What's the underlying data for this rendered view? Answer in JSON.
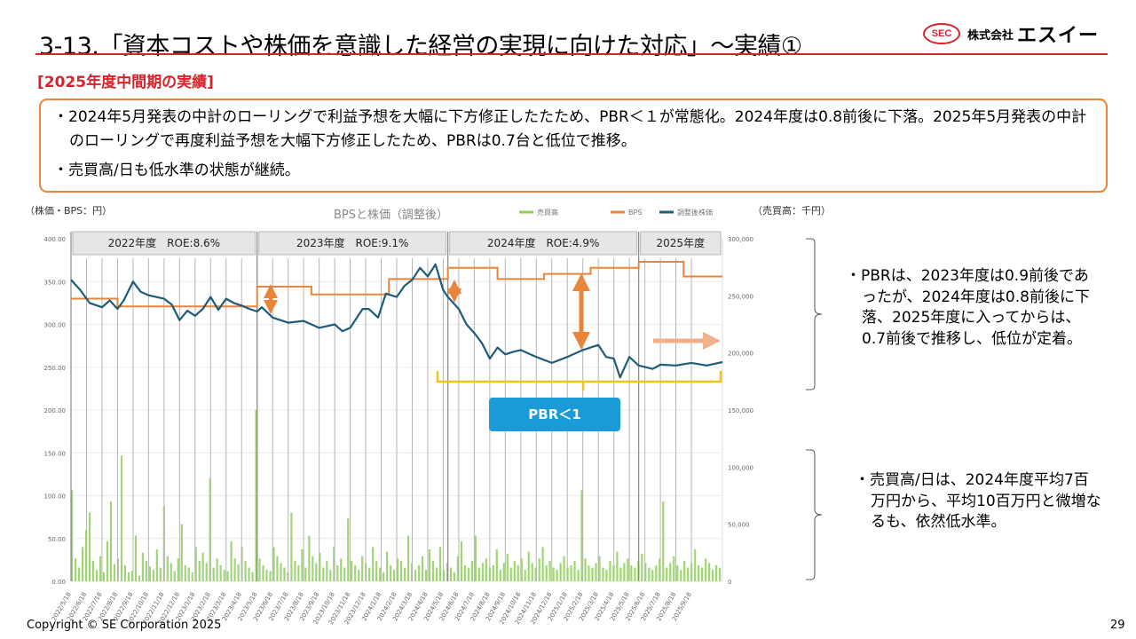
{
  "header": {
    "title": "3-13.「資本コストや株価を意識した経営の実現に向けた対応」～実績①",
    "logo_mark": "SEC",
    "logo_kk": "株式会社",
    "logo_name": "エスイー"
  },
  "section_label": "[2025年度中間期の実績]",
  "summary": {
    "bullet1": "・2024年5月発表の中計のローリングで利益予想を大幅に下方修正したたため、PBR＜１が常態化。2024年度は0.8前後に下落。2025年5月発表の中計のローリングで再度利益予想を大幅下方修正したため、PBRは0.7台と低位で推移。",
    "bullet2": "・売買高/日も低水準の状態が継続。"
  },
  "notes": {
    "pbr": "・PBRは、2023年度は0.9前後であったが、2024年度は0.8前後に下落、2025年度に入ってからは、0.7前後で推移し、低位が定着。",
    "volume": "・売買高/日は、2024年度平均7百万円から、平均10百万円と微増なるも、依然低水準。"
  },
  "footer": {
    "copyright": "Copyright © SE Corporation 2025",
    "page": "29"
  },
  "colors": {
    "accent_red": "#d9222a",
    "box_border": "#e8853b",
    "bps": "#e8853b",
    "price": "#1f5c7a",
    "volume": "#8fce5a",
    "badge": "#1a9ad6",
    "bracket": "#f0c419"
  },
  "chart_data": {
    "type": "line",
    "title": "BPSと株価（調整後）",
    "left_axis_unit": "（株価・BPS：円）",
    "right_axis_unit": "（売買高：千円）",
    "ylim_left": [
      0,
      400
    ],
    "ylim_right": [
      0,
      300000
    ],
    "yticks_left": [
      "0.00",
      "50.00",
      "100.00",
      "150.00",
      "200.00",
      "250.00",
      "300.00",
      "350.00",
      "400.00"
    ],
    "yticks_right": [
      "0",
      "50,000",
      "100,000",
      "150,000",
      "200,000",
      "250,000",
      "300,000"
    ],
    "xlim": [
      0,
      42
    ],
    "x_labels": [
      "2022/5/18",
      "2022/6/18",
      "2022/7/18",
      "2022/8/18",
      "2022/9/18",
      "2022/10/18",
      "2022/11/18",
      "2022/12/18",
      "2023/1/18",
      "2023/2/18",
      "2023/3/18",
      "2023/4/18",
      "2023/5/18",
      "2023/6/18",
      "2023/7/18",
      "2023/8/18",
      "2023/9/18",
      "2023/10/18",
      "2023/11/18",
      "2023/12/18",
      "2024/1/18",
      "2024/2/18",
      "2024/3/18",
      "2024/4/18",
      "2024/5/18",
      "2024/6/18",
      "2024/7/18",
      "2024/8/18",
      "2024/9/18",
      "2024/10/18",
      "2024/11/18",
      "2024/12/18",
      "2025/1/18",
      "2025/2/18",
      "2025/3/18",
      "2025/4/18",
      "2025/5/18",
      "2025/6/18",
      "2025/7/18",
      "2025/8/18",
      "2025/9/18"
    ],
    "legend": [
      "売買高",
      "BPS",
      "調整後株価"
    ],
    "legend_position": "top",
    "fiscal_years": [
      {
        "label": "2022年度　ROE:8.6%",
        "from": 0,
        "to": 12
      },
      {
        "label": "2023年度　ROE:9.1%",
        "from": 12,
        "to": 24.3
      },
      {
        "label": "2024年度　ROE:4.9%",
        "from": 24.3,
        "to": 36.6
      },
      {
        "label": "2025年度",
        "from": 36.6,
        "to": 42
      }
    ],
    "bps": [
      {
        "x0": 0,
        "x1": 3,
        "y": 330
      },
      {
        "x0": 3,
        "x1": 12,
        "y": 321
      },
      {
        "x0": 12,
        "x1": 15.5,
        "y": 344
      },
      {
        "x0": 15.5,
        "x1": 20.5,
        "y": 335
      },
      {
        "x0": 20.5,
        "x1": 24.3,
        "y": 353
      },
      {
        "x0": 24.3,
        "x1": 27.5,
        "y": 366
      },
      {
        "x0": 27.5,
        "x1": 30.5,
        "y": 353
      },
      {
        "x0": 30.5,
        "x1": 33.5,
        "y": 359
      },
      {
        "x0": 33.5,
        "x1": 36.6,
        "y": 366
      },
      {
        "x0": 36.6,
        "x1": 39.5,
        "y": 373
      },
      {
        "x0": 39.5,
        "x1": 42,
        "y": 356
      }
    ],
    "price": [
      [
        0,
        352
      ],
      [
        0.6,
        340
      ],
      [
        1.2,
        325
      ],
      [
        2,
        320
      ],
      [
        2.5,
        328
      ],
      [
        3,
        318
      ],
      [
        3.4,
        328
      ],
      [
        4,
        350
      ],
      [
        4.5,
        338
      ],
      [
        5,
        334
      ],
      [
        6,
        330
      ],
      [
        6.5,
        323
      ],
      [
        7,
        305
      ],
      [
        7.5,
        316
      ],
      [
        8,
        310
      ],
      [
        8.5,
        318
      ],
      [
        9,
        332
      ],
      [
        9.5,
        317
      ],
      [
        10,
        330
      ],
      [
        10.5,
        325
      ],
      [
        11,
        322
      ],
      [
        11.5,
        318
      ],
      [
        12,
        315
      ],
      [
        12.3,
        320
      ],
      [
        13,
        308
      ],
      [
        14,
        302
      ],
      [
        15,
        304
      ],
      [
        16,
        296
      ],
      [
        17,
        300
      ],
      [
        17.5,
        292
      ],
      [
        18,
        296
      ],
      [
        18.8,
        318
      ],
      [
        19.2,
        318
      ],
      [
        19.8,
        308
      ],
      [
        20.3,
        336
      ],
      [
        21,
        332
      ],
      [
        21.5,
        345
      ],
      [
        22,
        352
      ],
      [
        22.5,
        366
      ],
      [
        23,
        356
      ],
      [
        23.5,
        370
      ],
      [
        24,
        340
      ],
      [
        24.3,
        332
      ],
      [
        25,
        318
      ],
      [
        25.5,
        300
      ],
      [
        26,
        290
      ],
      [
        26.5,
        278
      ],
      [
        27,
        260
      ],
      [
        27.5,
        273
      ],
      [
        28,
        265
      ],
      [
        28.5,
        268
      ],
      [
        29,
        270
      ],
      [
        30,
        262
      ],
      [
        31,
        255
      ],
      [
        32,
        262
      ],
      [
        32.5,
        266
      ],
      [
        33,
        270
      ],
      [
        34,
        276
      ],
      [
        34.5,
        262
      ],
      [
        35,
        260
      ],
      [
        35.4,
        238
      ],
      [
        36,
        262
      ],
      [
        36.6,
        252
      ],
      [
        37.5,
        248
      ],
      [
        38,
        253
      ],
      [
        39,
        252
      ],
      [
        40,
        255
      ],
      [
        41,
        252
      ],
      [
        42,
        256
      ]
    ],
    "volume": [
      80,
      20,
      12,
      30,
      45,
      60,
      18,
      10,
      22,
      8,
      35,
      70,
      15,
      20,
      110,
      14,
      8,
      9,
      40,
      5,
      25,
      18,
      13,
      10,
      28,
      12,
      66,
      22,
      16,
      9,
      20,
      50,
      14,
      12,
      8,
      30,
      18,
      25,
      16,
      90,
      12,
      20,
      14,
      10,
      9,
      35,
      20,
      15,
      30,
      18,
      12,
      8,
      150,
      20,
      14,
      10,
      9,
      30,
      22,
      16,
      12,
      8,
      60,
      18,
      14,
      28,
      12,
      40,
      22,
      16,
      25,
      12,
      18,
      10,
      30,
      14,
      20,
      12,
      55,
      18,
      14,
      10,
      22,
      16,
      12,
      30,
      18,
      12,
      8,
      26,
      14,
      10,
      20,
      18,
      12,
      40,
      16,
      10,
      14,
      22,
      10,
      28,
      18,
      12,
      30,
      10,
      16,
      12,
      8,
      22,
      35,
      14,
      12,
      18,
      40,
      12,
      16,
      20,
      12,
      14,
      28,
      10,
      16,
      24,
      12,
      18,
      14,
      20,
      10,
      26,
      16,
      12,
      20,
      30,
      14,
      18,
      12,
      10,
      16,
      22,
      12,
      14,
      18,
      10,
      80,
      20,
      14,
      12,
      16,
      22,
      12,
      10,
      18,
      14,
      26,
      12,
      16,
      20,
      14,
      12,
      18,
      24,
      16,
      12,
      10,
      14,
      20,
      70,
      12,
      16,
      22,
      14,
      10,
      18,
      12,
      16,
      28,
      14,
      12,
      20,
      16,
      10,
      14,
      12
    ]
  }
}
